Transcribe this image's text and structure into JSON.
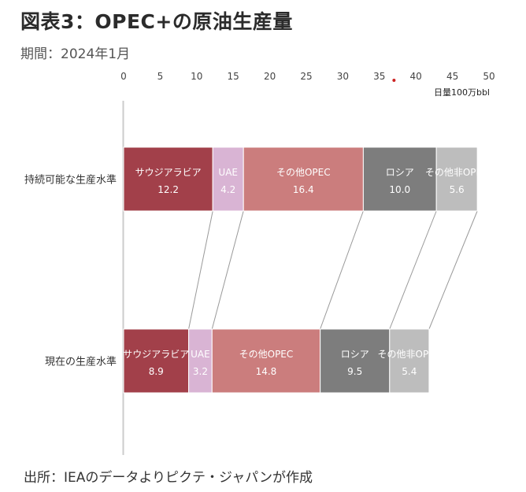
{
  "title": "図表3：OPEC+の原油生産量",
  "period": "期間：2024年1月",
  "source": "出所：IEAのデータよりピクテ・ジャパンが作成",
  "chart_data": {
    "type": "bar",
    "orientation": "horizontal",
    "stacked": true,
    "unit": "日量100万bbl",
    "xlim": [
      0,
      50
    ],
    "x_ticks": [
      "0",
      "5",
      "10",
      "15",
      "20",
      "25",
      "30",
      "35",
      "40",
      "45",
      "50"
    ],
    "categories": [
      "持続可能な生産水準",
      "現在の生産水準"
    ],
    "series": [
      {
        "name": "サウジアラビア",
        "values": [
          12.2,
          8.9
        ],
        "labels": [
          "12.2",
          "8.9"
        ],
        "color": "#a2404a"
      },
      {
        "name": "UAE",
        "values": [
          4.2,
          3.2
        ],
        "labels": [
          "4.2",
          "3.2"
        ],
        "color": "#d9b4d4"
      },
      {
        "name": "その他OPEC",
        "values": [
          16.4,
          14.8
        ],
        "labels": [
          "16.4",
          "14.8"
        ],
        "color": "#cb7d7d"
      },
      {
        "name": "ロシア",
        "values": [
          10.0,
          9.5
        ],
        "labels": [
          "10.0",
          "9.5"
        ],
        "color": "#7d7d7d"
      },
      {
        "name": "その他非OPEC",
        "values": [
          5.6,
          5.4
        ],
        "labels": [
          "5.6",
          "5.4"
        ],
        "color": "#bdbdbd"
      }
    ],
    "highlight_marker": {
      "x": 37,
      "color": "#cc2222"
    }
  }
}
